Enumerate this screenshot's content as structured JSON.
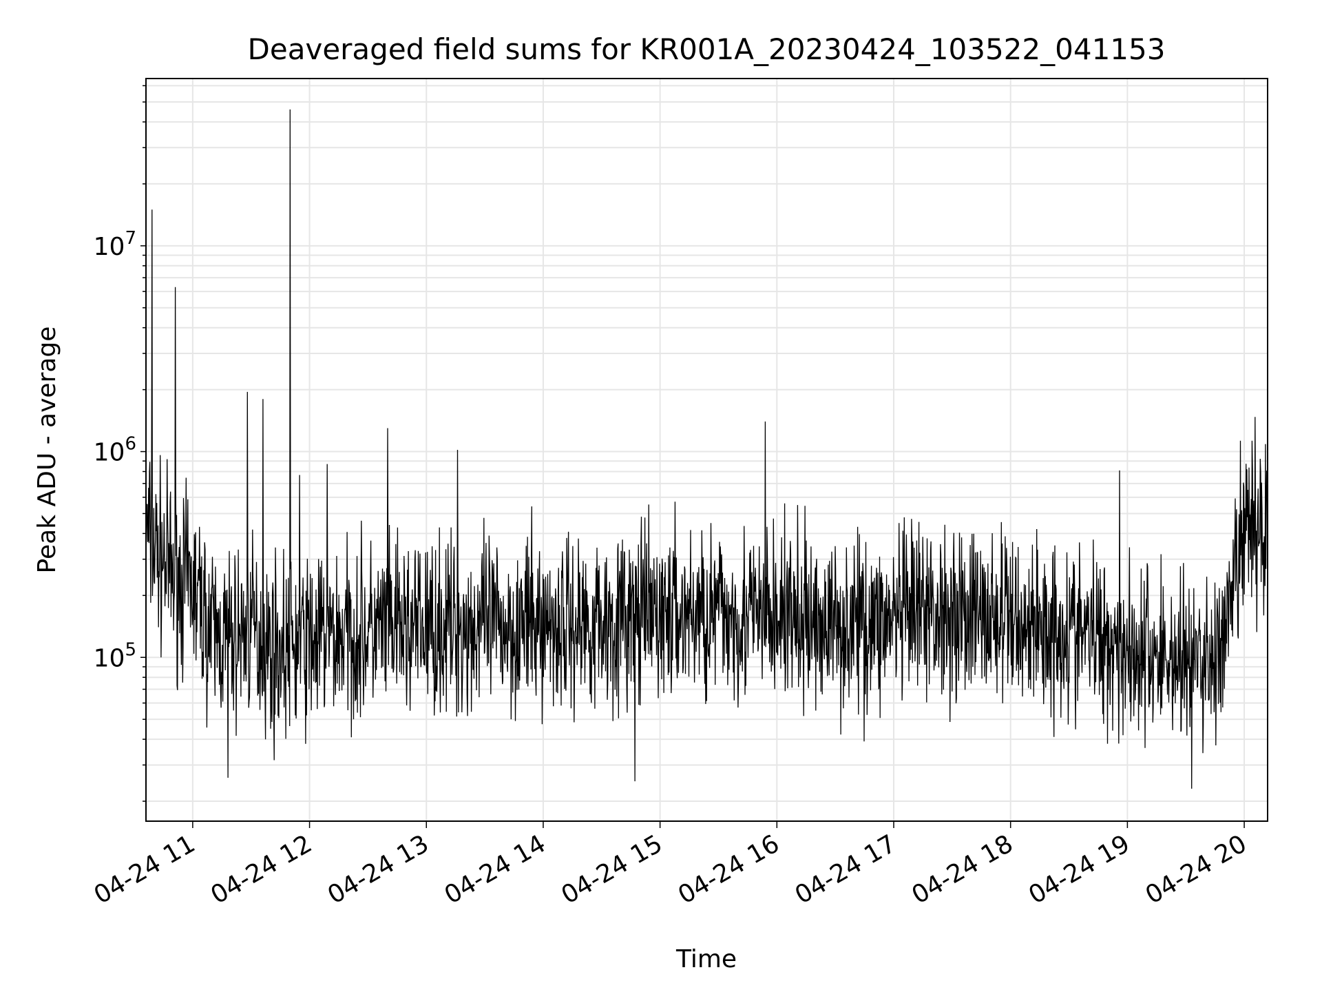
{
  "chart_data": {
    "type": "line",
    "title": "Deaveraged field sums for KR001A_20230424_103522_041153",
    "xlabel": "Time",
    "ylabel": "Peak ADU - average",
    "yscale": "log",
    "xlim": [
      "2023-04-24 10:36",
      "2023-04-24 20:12"
    ],
    "ylim": [
      16000,
      65000000
    ],
    "x_ticks": [
      "04-24 11",
      "04-24 12",
      "04-24 13",
      "04-24 14",
      "04-24 15",
      "04-24 16",
      "04-24 17",
      "04-24 18",
      "04-24 19",
      "04-24 20"
    ],
    "y_ticks": [
      {
        "base": "10",
        "exp": "5",
        "value": 100000
      },
      {
        "base": "10",
        "exp": "6",
        "value": 1000000
      },
      {
        "base": "10",
        "exp": "7",
        "value": 10000000
      }
    ],
    "grid": true,
    "line_color": "#000000",
    "series": [
      {
        "x": [
          "2023-04-24 10:36",
          "2023-04-24 10:40",
          "2023-04-24 10:50",
          "2023-04-24 11:00",
          "2023-04-24 11:10",
          "2023-04-24 11:20",
          "2023-04-24 11:30",
          "2023-04-24 11:40",
          "2023-04-24 11:50",
          "2023-04-24 12:00",
          "2023-04-24 12:20",
          "2023-04-24 12:40",
          "2023-04-24 13:00",
          "2023-04-24 13:30",
          "2023-04-24 14:00",
          "2023-04-24 14:30",
          "2023-04-24 15:00",
          "2023-04-24 15:30",
          "2023-04-24 16:00",
          "2023-04-24 16:30",
          "2023-04-24 17:00",
          "2023-04-24 17:30",
          "2023-04-24 18:00",
          "2023-04-24 18:30",
          "2023-04-24 18:50",
          "2023-04-24 19:00",
          "2023-04-24 19:20",
          "2023-04-24 19:40",
          "2023-04-24 19:50",
          "2023-04-24 20:00",
          "2023-04-24 20:12"
        ],
        "values": [
          400000,
          350000,
          250000,
          220000,
          130000,
          120000,
          140000,
          110000,
          110000,
          120000,
          130000,
          135000,
          140000,
          140000,
          145000,
          150000,
          160000,
          165000,
          150000,
          145000,
          150000,
          170000,
          150000,
          135000,
          125000,
          110000,
          100000,
          95000,
          110000,
          400000,
          450000
        ]
      }
    ],
    "spikes": [
      {
        "x": "2023-04-24 10:39",
        "value": 15000000
      },
      {
        "x": "2023-04-24 10:51",
        "value": 6300000
      },
      {
        "x": "2023-04-24 11:28",
        "value": 1950000
      },
      {
        "x": "2023-04-24 11:36",
        "value": 1800000
      },
      {
        "x": "2023-04-24 11:50",
        "value": 46000000
      },
      {
        "x": "2023-04-24 11:55",
        "value": 770000
      },
      {
        "x": "2023-04-24 12:09",
        "value": 870000
      },
      {
        "x": "2023-04-24 12:40",
        "value": 1300000
      },
      {
        "x": "2023-04-24 13:16",
        "value": 1020000
      },
      {
        "x": "2023-04-24 15:54",
        "value": 1400000
      },
      {
        "x": "2023-04-24 16:04",
        "value": 560000
      },
      {
        "x": "2023-04-24 18:56",
        "value": 810000
      },
      {
        "x": "2023-04-24 19:58",
        "value": 1130000
      },
      {
        "x": "2023-04-24 20:04",
        "value": 1130000
      }
    ],
    "dips": [
      {
        "x": "2023-04-24 11:18",
        "value": 26000
      },
      {
        "x": "2023-04-24 14:47",
        "value": 25000
      },
      {
        "x": "2023-04-24 19:33",
        "value": 23000
      }
    ]
  }
}
